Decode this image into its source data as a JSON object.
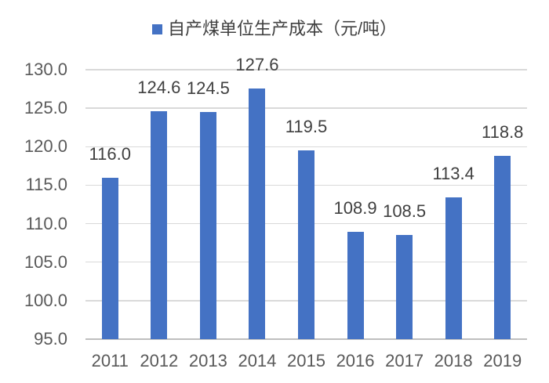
{
  "chart_data": {
    "type": "bar",
    "title": "自产煤单位生产成本（元/吨）",
    "categories": [
      "2011",
      "2012",
      "2013",
      "2014",
      "2015",
      "2016",
      "2017",
      "2018",
      "2019"
    ],
    "values": [
      116.0,
      124.6,
      124.5,
      127.6,
      119.5,
      108.9,
      108.5,
      113.4,
      118.8
    ],
    "value_labels": [
      "116.0",
      "124.6",
      "124.5",
      "127.6",
      "119.5",
      "108.9",
      "108.5",
      "113.4",
      "118.8"
    ],
    "xlabel": "",
    "ylabel": "",
    "ylim": [
      95.0,
      130.0
    ],
    "ytick_step": 5.0,
    "ytick_labels": [
      "95.0",
      "100.0",
      "105.0",
      "110.0",
      "115.0",
      "120.0",
      "125.0",
      "130.0"
    ],
    "grid": true,
    "legend_position": "top-center",
    "colors": {
      "bar": "#4472C4",
      "gridline": "#D9D9D9",
      "axis_line": "#BFBFBF",
      "tick_label": "#595959",
      "data_label": "#404040",
      "legend_text": "#404040",
      "background": "#FFFFFF"
    }
  },
  "legend": {
    "marker": "blue-square",
    "series_label": "自产煤单位生产成本（元/吨）"
  }
}
